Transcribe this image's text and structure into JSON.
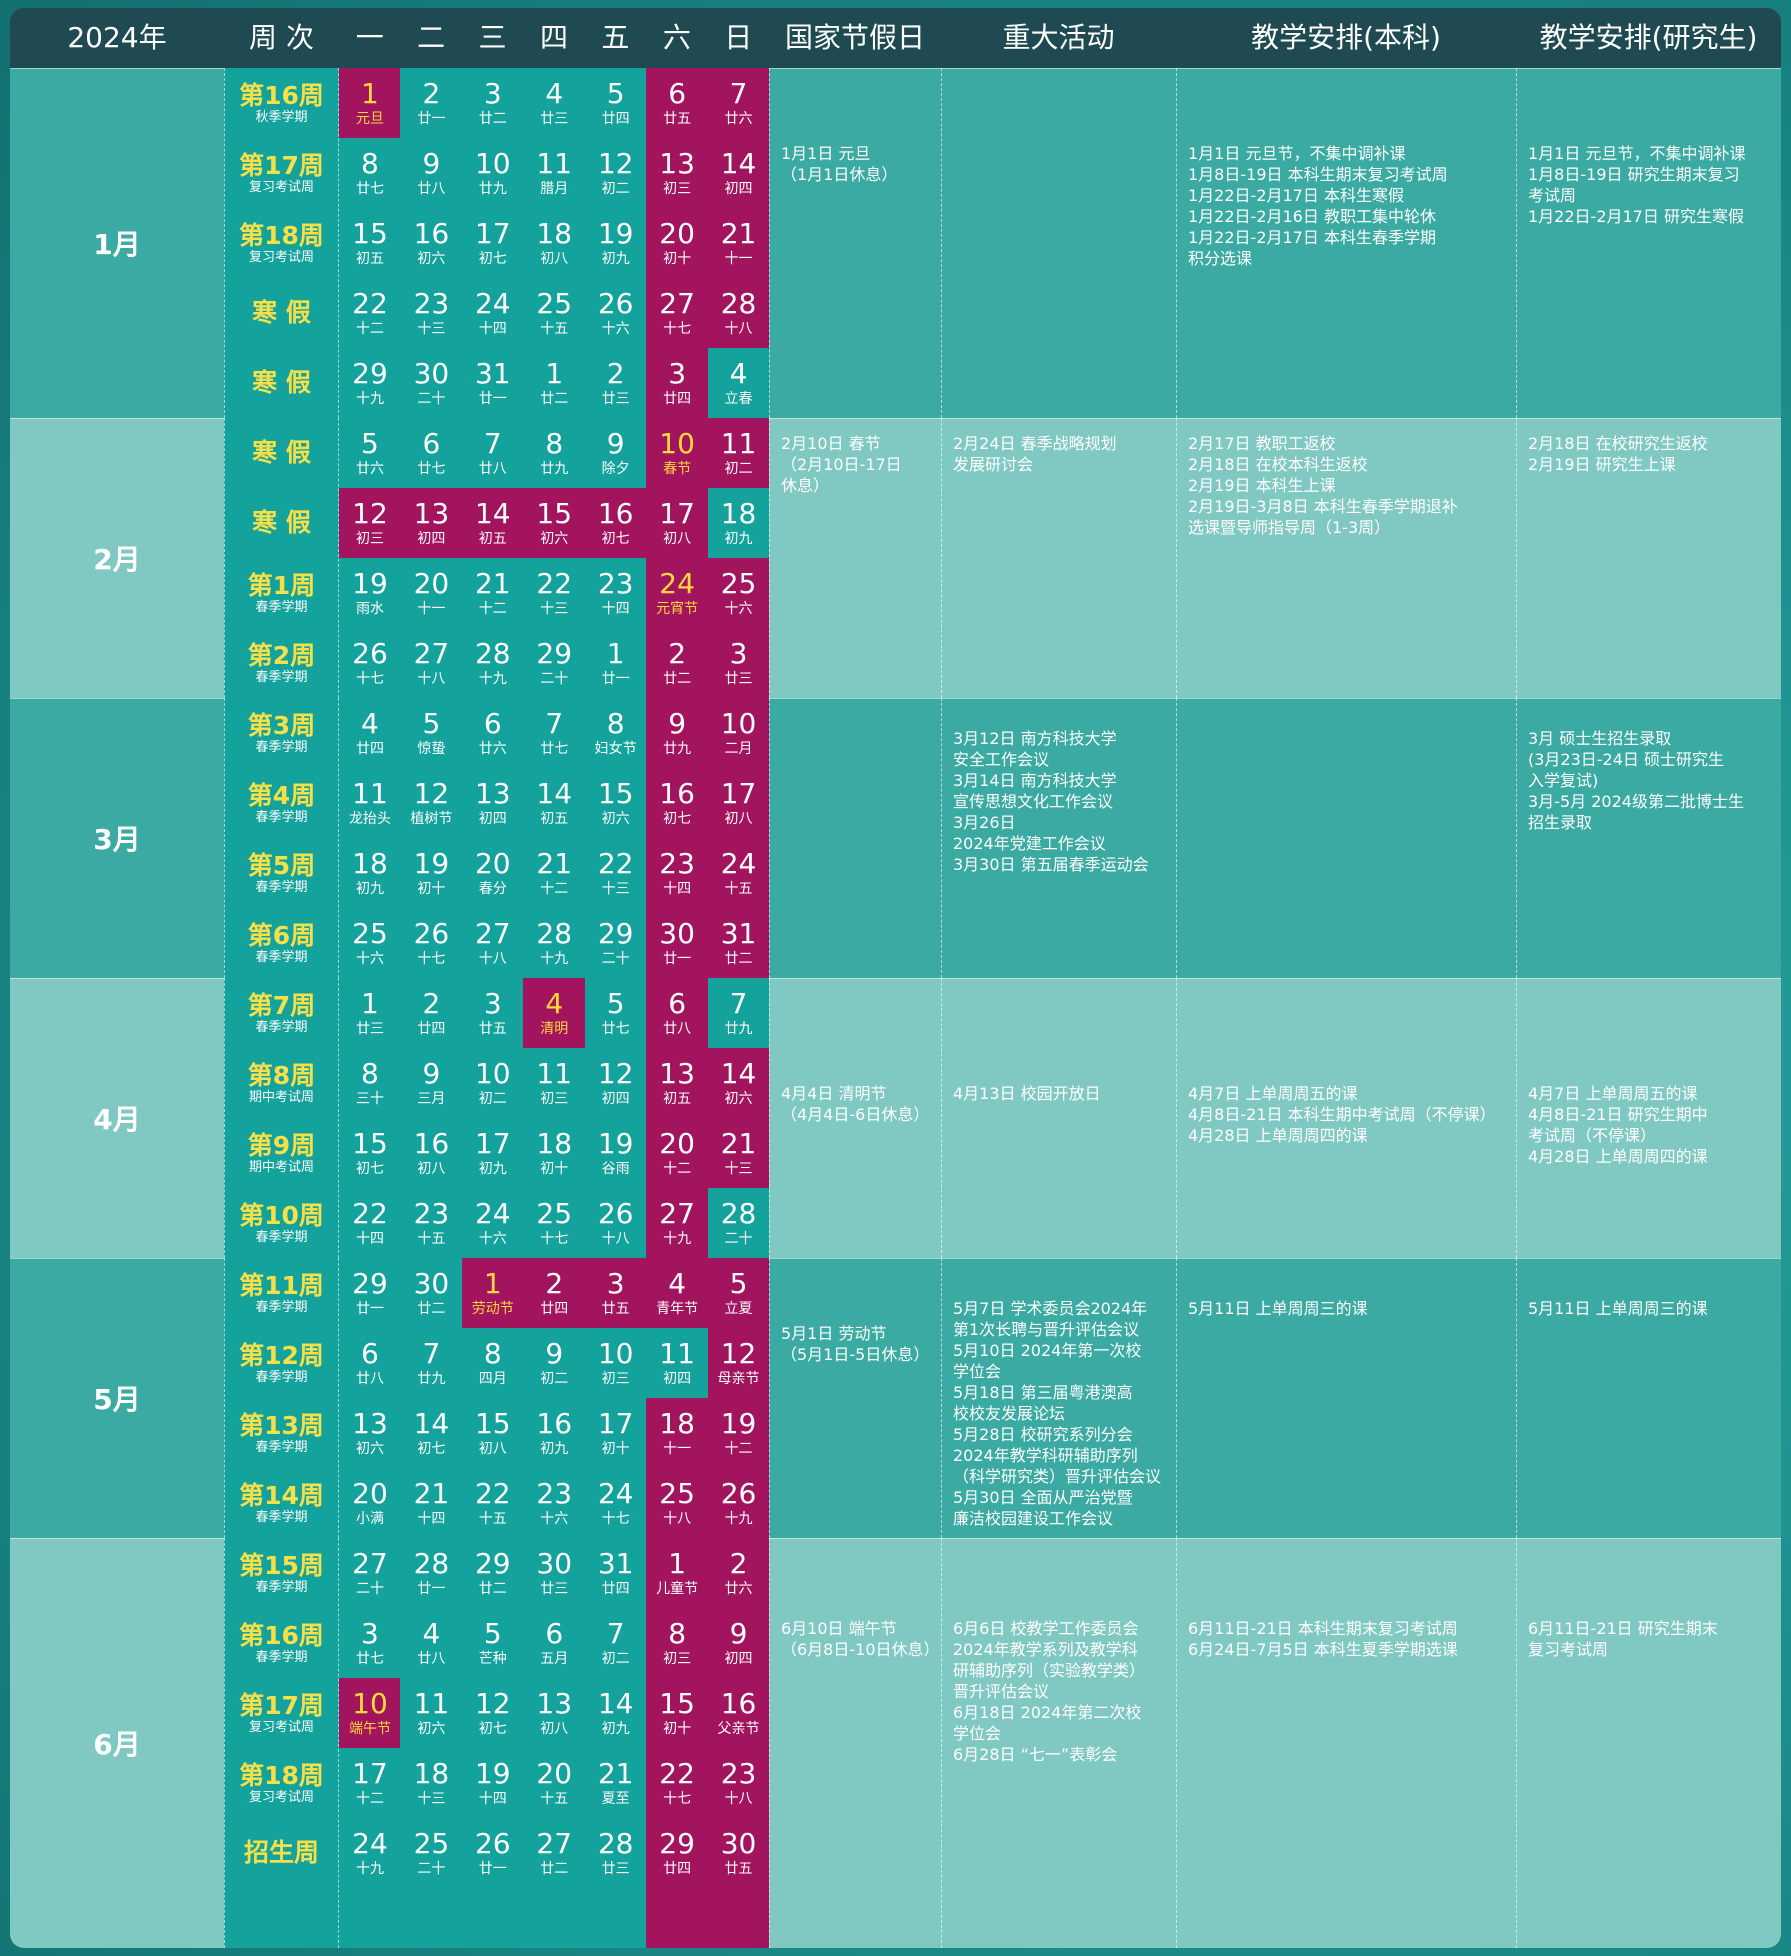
{
  "header": [
    "2024年",
    "周 次",
    "一",
    "二",
    "三",
    "四",
    "五",
    "六",
    "日",
    "国家节假日",
    "重大活动",
    "教学安排(本科)",
    "教学安排(研究生)"
  ],
  "colors": {
    "t": "#13a29c",
    "m": "#a3145e",
    "h": "#a3145e",
    "holiday_text": "#ffd93b"
  },
  "months": [
    {
      "name": "1月",
      "weeks": [
        {
          "label": "第16周",
          "sub": "秋季学期",
          "fill": "httttmm",
          "days": [
            [
              "1",
              "元旦"
            ],
            [
              "2",
              "廿一"
            ],
            [
              "3",
              "廿二"
            ],
            [
              "4",
              "廿三"
            ],
            [
              "5",
              "廿四"
            ],
            [
              "6",
              "廿五"
            ],
            [
              "7",
              "廿六"
            ]
          ]
        },
        {
          "label": "第17周",
          "sub": "复习考试周",
          "fill": "tttttmm",
          "days": [
            [
              "8",
              "廿七"
            ],
            [
              "9",
              "廿八"
            ],
            [
              "10",
              "廿九"
            ],
            [
              "11",
              "腊月"
            ],
            [
              "12",
              "初二"
            ],
            [
              "13",
              "初三"
            ],
            [
              "14",
              "初四"
            ]
          ]
        },
        {
          "label": "第18周",
          "sub": "复习考试周",
          "fill": "tttttmm",
          "days": [
            [
              "15",
              "初五"
            ],
            [
              "16",
              "初六"
            ],
            [
              "17",
              "初七"
            ],
            [
              "18",
              "初八"
            ],
            [
              "19",
              "初九"
            ],
            [
              "20",
              "初十"
            ],
            [
              "21",
              "十一"
            ]
          ]
        },
        {
          "label": "寒 假",
          "fill": "tttttmm",
          "days": [
            [
              "22",
              "十二"
            ],
            [
              "23",
              "十三"
            ],
            [
              "24",
              "十四"
            ],
            [
              "25",
              "十五"
            ],
            [
              "26",
              "十六"
            ],
            [
              "27",
              "十七"
            ],
            [
              "28",
              "十八"
            ]
          ]
        },
        {
          "label": "寒 假",
          "fill": "tttttmt",
          "days": [
            [
              "29",
              "十九"
            ],
            [
              "30",
              "二十"
            ],
            [
              "31",
              "廿一"
            ],
            [
              "1",
              "廿二"
            ],
            [
              "2",
              "廿三"
            ],
            [
              "3",
              "廿四"
            ],
            [
              "4",
              "立春"
            ]
          ]
        }
      ],
      "holiday": [
        "1月1日 元旦",
        "（1月1日休息）"
      ],
      "activities": [],
      "undergrad": [
        "1月1日 元旦节，不集中调补课",
        "1月8日-19日 本科生期末复习考试周",
        "1月22日-2月17日 本科生寒假",
        "1月22日-2月16日 教职工集中轮休",
        "1月22日-2月17日 本科生春季学期",
        "积分选课"
      ],
      "graduate": [
        "1月1日 元旦节，不集中调补课",
        "1月8日-19日 研究生期末复习",
        "考试周",
        "1月22日-2月17日 研究生寒假"
      ]
    },
    {
      "name": "2月",
      "weeks": [
        {
          "label": "寒 假",
          "fill": "tttttHm",
          "days": [
            [
              "5",
              "廿六"
            ],
            [
              "6",
              "廿七"
            ],
            [
              "7",
              "廿八"
            ],
            [
              "8",
              "廿九"
            ],
            [
              "9",
              "除夕"
            ],
            [
              "10",
              "春节"
            ],
            [
              "11",
              "初二"
            ]
          ]
        },
        {
          "label": "寒 假",
          "fill": "mmmmmmt",
          "days": [
            [
              "12",
              "初三"
            ],
            [
              "13",
              "初四"
            ],
            [
              "14",
              "初五"
            ],
            [
              "15",
              "初六"
            ],
            [
              "16",
              "初七"
            ],
            [
              "17",
              "初八"
            ],
            [
              "18",
              "初九"
            ]
          ]
        },
        {
          "label": "第1周",
          "sub": "春季学期",
          "fill": "tttttHm",
          "days": [
            [
              "19",
              "雨水"
            ],
            [
              "20",
              "十一"
            ],
            [
              "21",
              "十二"
            ],
            [
              "22",
              "十三"
            ],
            [
              "23",
              "十四"
            ],
            [
              "24",
              "元宵节"
            ],
            [
              "25",
              "十六"
            ]
          ]
        },
        {
          "label": "第2周",
          "sub": "春季学期",
          "fill": "tttttmm",
          "days": [
            [
              "26",
              "十七"
            ],
            [
              "27",
              "十八"
            ],
            [
              "28",
              "十九"
            ],
            [
              "29",
              "二十"
            ],
            [
              "1",
              "廿一"
            ],
            [
              "2",
              "廿二"
            ],
            [
              "3",
              "廿三"
            ]
          ]
        }
      ],
      "holiday": [
        "2月10日 春节",
        "（2月10日-17日",
        "休息）"
      ],
      "activities": [
        "2月24日 春季战略规划",
        "发展研讨会"
      ],
      "undergrad": [
        "2月17日 教职工返校",
        "2月18日 在校本科生返校",
        "2月19日 本科生上课",
        "2月19日-3月8日 本科生春季学期退补",
        "选课暨导师指导周（1-3周）"
      ],
      "graduate": [
        "2月18日 在校研究生返校",
        "2月19日 研究生上课"
      ]
    },
    {
      "name": "3月",
      "weeks": [
        {
          "label": "第3周",
          "sub": "春季学期",
          "fill": "tttttmm",
          "days": [
            [
              "4",
              "廿四"
            ],
            [
              "5",
              "惊蛰"
            ],
            [
              "6",
              "廿六"
            ],
            [
              "7",
              "廿七"
            ],
            [
              "8",
              "妇女节"
            ],
            [
              "9",
              "廿九"
            ],
            [
              "10",
              "二月"
            ]
          ]
        },
        {
          "label": "第4周",
          "sub": "春季学期",
          "fill": "tttttmm",
          "days": [
            [
              "11",
              "龙抬头"
            ],
            [
              "12",
              "植树节"
            ],
            [
              "13",
              "初四"
            ],
            [
              "14",
              "初五"
            ],
            [
              "15",
              "初六"
            ],
            [
              "16",
              "初七"
            ],
            [
              "17",
              "初八"
            ]
          ]
        },
        {
          "label": "第5周",
          "sub": "春季学期",
          "fill": "tttttmm",
          "days": [
            [
              "18",
              "初九"
            ],
            [
              "19",
              "初十"
            ],
            [
              "20",
              "春分"
            ],
            [
              "21",
              "十二"
            ],
            [
              "22",
              "十三"
            ],
            [
              "23",
              "十四"
            ],
            [
              "24",
              "十五"
            ]
          ]
        },
        {
          "label": "第6周",
          "sub": "春季学期",
          "fill": "tttttmm",
          "days": [
            [
              "25",
              "十六"
            ],
            [
              "26",
              "十七"
            ],
            [
              "27",
              "十八"
            ],
            [
              "28",
              "十九"
            ],
            [
              "29",
              "二十"
            ],
            [
              "30",
              "廿一"
            ],
            [
              "31",
              "廿二"
            ]
          ]
        }
      ],
      "holiday": [],
      "activities": [
        "3月12日 南方科技大学",
        "安全工作会议",
        "3月14日 南方科技大学",
        "宣传思想文化工作会议",
        "3月26日",
        "2024年党建工作会议",
        "3月30日 第五届春季运动会"
      ],
      "undergrad": [],
      "graduate": [
        "3月 硕士生招生录取",
        "(3月23日-24日 硕士研究生",
        "入学复试)",
        "3月-5月 2024级第二批博士生",
        "招生录取"
      ]
    },
    {
      "name": "4月",
      "weeks": [
        {
          "label": "第7周",
          "sub": "春季学期",
          "fill": "ttthtmt",
          "days": [
            [
              "1",
              "廿三"
            ],
            [
              "2",
              "廿四"
            ],
            [
              "3",
              "廿五"
            ],
            [
              "4",
              "清明"
            ],
            [
              "5",
              "廿七"
            ],
            [
              "6",
              "廿八"
            ],
            [
              "7",
              "廿九"
            ]
          ]
        },
        {
          "label": "第8周",
          "sub": "期中考试周",
          "fill": "tttttmm",
          "days": [
            [
              "8",
              "三十"
            ],
            [
              "9",
              "三月"
            ],
            [
              "10",
              "初二"
            ],
            [
              "11",
              "初三"
            ],
            [
              "12",
              "初四"
            ],
            [
              "13",
              "初五"
            ],
            [
              "14",
              "初六"
            ]
          ]
        },
        {
          "label": "第9周",
          "sub": "期中考试周",
          "fill": "tttttmm",
          "days": [
            [
              "15",
              "初七"
            ],
            [
              "16",
              "初八"
            ],
            [
              "17",
              "初九"
            ],
            [
              "18",
              "初十"
            ],
            [
              "19",
              "谷雨"
            ],
            [
              "20",
              "十二"
            ],
            [
              "21",
              "十三"
            ]
          ]
        },
        {
          "label": "第10周",
          "sub": "春季学期",
          "fill": "tttttmt",
          "days": [
            [
              "22",
              "十四"
            ],
            [
              "23",
              "十五"
            ],
            [
              "24",
              "十六"
            ],
            [
              "25",
              "十七"
            ],
            [
              "26",
              "十八"
            ],
            [
              "27",
              "十九"
            ],
            [
              "28",
              "二十"
            ]
          ]
        }
      ],
      "holiday": [
        "4月4日 清明节",
        "（4月4日-6日休息）"
      ],
      "activities": [
        "4月13日 校园开放日"
      ],
      "undergrad": [
        "4月7日 上单周周五的课",
        "4月8日-21日 本科生期中考试周（不停课）",
        "4月28日 上单周周四的课"
      ],
      "graduate": [
        "4月7日 上单周周五的课",
        "4月8日-21日 研究生期中",
        "考试周（不停课）",
        "4月28日 上单周周四的课"
      ]
    },
    {
      "name": "5月",
      "weeks": [
        {
          "label": "第11周",
          "sub": "春季学期",
          "fill": "tthmmmm",
          "days": [
            [
              "29",
              "廿一"
            ],
            [
              "30",
              "廿二"
            ],
            [
              "1",
              "劳动节"
            ],
            [
              "2",
              "廿四"
            ],
            [
              "3",
              "廿五"
            ],
            [
              "4",
              "青年节"
            ],
            [
              "5",
              "立夏"
            ]
          ]
        },
        {
          "label": "第12周",
          "sub": "春季学期",
          "fill": "ttttttm",
          "days": [
            [
              "6",
              "廿八"
            ],
            [
              "7",
              "廿九"
            ],
            [
              "8",
              "四月"
            ],
            [
              "9",
              "初二"
            ],
            [
              "10",
              "初三"
            ],
            [
              "11",
              "初四"
            ],
            [
              "12",
              "母亲节"
            ]
          ]
        },
        {
          "label": "第13周",
          "sub": "春季学期",
          "fill": "tttttmm",
          "days": [
            [
              "13",
              "初六"
            ],
            [
              "14",
              "初七"
            ],
            [
              "15",
              "初八"
            ],
            [
              "16",
              "初九"
            ],
            [
              "17",
              "初十"
            ],
            [
              "18",
              "十一"
            ],
            [
              "19",
              "十二"
            ]
          ]
        },
        {
          "label": "第14周",
          "sub": "春季学期",
          "fill": "tttttmm",
          "days": [
            [
              "20",
              "小满"
            ],
            [
              "21",
              "十四"
            ],
            [
              "22",
              "十五"
            ],
            [
              "23",
              "十六"
            ],
            [
              "24",
              "十七"
            ],
            [
              "25",
              "十八"
            ],
            [
              "26",
              "十九"
            ]
          ]
        }
      ],
      "holiday": [
        "5月1日 劳动节",
        "（5月1日-5日休息）"
      ],
      "activities": [
        "5月7日 学术委员会2024年",
        "第1次长聘与晋升评估会议",
        "5月10日 2024年第一次校",
        "学位会",
        "5月18日 第三届粤港澳高",
        "校校友发展论坛",
        "5月28日 校研究系列分会",
        "2024年教学科研辅助序列",
        "（科学研究类）晋升评估会议",
        "5月30日 全面从严治党暨",
        "廉洁校园建设工作会议"
      ],
      "undergrad": [
        "5月11日 上单周周三的课"
      ],
      "graduate": [
        "5月11日 上单周周三的课"
      ]
    },
    {
      "name": "6月",
      "weeks": [
        {
          "label": "第15周",
          "sub": "春季学期",
          "fill": "tttttmm",
          "days": [
            [
              "27",
              "二十"
            ],
            [
              "28",
              "廿一"
            ],
            [
              "29",
              "廿二"
            ],
            [
              "30",
              "廿三"
            ],
            [
              "31",
              "廿四"
            ],
            [
              "1",
              "儿童节"
            ],
            [
              "2",
              "廿六"
            ]
          ]
        },
        {
          "label": "第16周",
          "sub": "春季学期",
          "fill": "tttttmm",
          "days": [
            [
              "3",
              "廿七"
            ],
            [
              "4",
              "廿八"
            ],
            [
              "5",
              "芒种"
            ],
            [
              "6",
              "五月"
            ],
            [
              "7",
              "初二"
            ],
            [
              "8",
              "初三"
            ],
            [
              "9",
              "初四"
            ]
          ]
        },
        {
          "label": "第17周",
          "sub": "复习考试周",
          "fill": "httttmm",
          "days": [
            [
              "10",
              "端午节"
            ],
            [
              "11",
              "初六"
            ],
            [
              "12",
              "初七"
            ],
            [
              "13",
              "初八"
            ],
            [
              "14",
              "初九"
            ],
            [
              "15",
              "初十"
            ],
            [
              "16",
              "父亲节"
            ]
          ]
        },
        {
          "label": "第18周",
          "sub": "复习考试周",
          "fill": "tttttmm",
          "days": [
            [
              "17",
              "十二"
            ],
            [
              "18",
              "十三"
            ],
            [
              "19",
              "十四"
            ],
            [
              "20",
              "十五"
            ],
            [
              "21",
              "夏至"
            ],
            [
              "22",
              "十七"
            ],
            [
              "23",
              "十八"
            ]
          ]
        },
        {
          "label": "招生周",
          "fill": "tttttmm",
          "days": [
            [
              "24",
              "十九"
            ],
            [
              "25",
              "二十"
            ],
            [
              "26",
              "廿一"
            ],
            [
              "27",
              "廿二"
            ],
            [
              "28",
              "廿三"
            ],
            [
              "29",
              "廿四"
            ],
            [
              "30",
              "廿五"
            ]
          ]
        }
      ],
      "holiday": [
        "6月10日 端午节",
        "（6月8日-10日休息）"
      ],
      "activities": [
        "6月6日 校教学工作委员会",
        "2024年教学系列及教学科",
        "研辅助序列（实验教学类）",
        "晋升评估会议",
        "6月18日 2024年第二次校",
        "学位会",
        "6月28日 “七一”表彰会"
      ],
      "undergrad": [
        "6月11日-21日 本科生期末复习考试周",
        "6月24日-7月5日 本科生夏季学期选课"
      ],
      "graduate": [
        "6月11日-21日 研究生期末",
        "复习考试周"
      ]
    }
  ]
}
